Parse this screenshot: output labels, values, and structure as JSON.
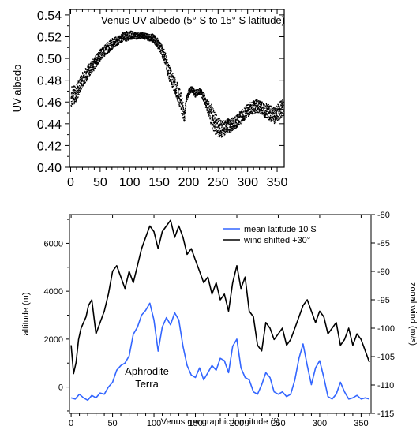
{
  "chart_data": [
    {
      "type": "scatter",
      "title": "Venus UV albedo (5° S to 15° S latitude)",
      "xlabel": "",
      "ylabel": "UV albedo",
      "xlim": [
        -2,
        362
      ],
      "ylim": [
        0.4,
        0.545
      ],
      "xticks": [
        0,
        50,
        100,
        150,
        200,
        250,
        300,
        350
      ],
      "yticks": [
        0.4,
        0.42,
        0.44,
        0.46,
        0.48,
        0.5,
        0.52,
        0.54
      ],
      "grid": false,
      "series": [
        {
          "color": "#000000",
          "envelope": {
            "x": [
              0,
              10,
              20,
              30,
              40,
              50,
              60,
              70,
              80,
              90,
              95,
              100,
              110,
              120,
              130,
              140,
              150,
              160,
              165,
              170,
              180,
              188,
              192,
              195,
              200,
              205,
              210,
              215,
              220,
              230,
              238,
              245,
              255,
              265,
              275,
              285,
              300,
              315,
              330,
              345,
              360
            ],
            "mid": [
              0.465,
              0.47,
              0.482,
              0.489,
              0.496,
              0.504,
              0.509,
              0.514,
              0.517,
              0.521,
              0.521,
              0.522,
              0.521,
              0.522,
              0.52,
              0.519,
              0.512,
              0.5,
              0.488,
              0.483,
              0.47,
              0.458,
              0.446,
              0.462,
              0.47,
              0.472,
              0.468,
              0.47,
              0.47,
              0.458,
              0.448,
              0.44,
              0.435,
              0.438,
              0.44,
              0.445,
              0.453,
              0.457,
              0.452,
              0.448,
              0.456
            ],
            "half": [
              0.01,
              0.008,
              0.007,
              0.006,
              0.006,
              0.005,
              0.005,
              0.005,
              0.004,
              0.004,
              0.005,
              0.004,
              0.003,
              0.003,
              0.003,
              0.004,
              0.005,
              0.006,
              0.007,
              0.007,
              0.008,
              0.01,
              0.006,
              0.003,
              0.003,
              0.003,
              0.004,
              0.003,
              0.003,
              0.006,
              0.01,
              0.01,
              0.008,
              0.007,
              0.006,
              0.006,
              0.006,
              0.006,
              0.007,
              0.008,
              0.008
            ]
          }
        }
      ]
    },
    {
      "type": "line",
      "title": "",
      "xlabel": "Venus geographic longitude (°)",
      "ylabel": "altitude (m)",
      "y2label": "zonal wind (m/s)",
      "xlim": [
        -2,
        362
      ],
      "ylim": [
        -1100,
        7200
      ],
      "y2lim": [
        -115,
        -80
      ],
      "xticks": [
        0,
        50,
        100,
        150,
        200,
        250,
        300,
        350
      ],
      "yticks": [
        0,
        2000,
        4000,
        6000
      ],
      "y2ticks": [
        -80,
        -85,
        -90,
        -95,
        -100,
        -105,
        -110,
        -115
      ],
      "legend_position": "top-right",
      "annotation": "Aphrodite Terra",
      "series": [
        {
          "name": "mean latitude 10 S",
          "color": "#3366ff",
          "axis": "left",
          "x": [
            0,
            5,
            10,
            15,
            20,
            25,
            30,
            35,
            40,
            45,
            50,
            55,
            60,
            65,
            70,
            75,
            80,
            85,
            90,
            95,
            100,
            105,
            110,
            115,
            120,
            125,
            130,
            135,
            140,
            145,
            150,
            155,
            160,
            165,
            170,
            175,
            180,
            185,
            190,
            195,
            200,
            205,
            210,
            215,
            220,
            225,
            230,
            235,
            240,
            245,
            250,
            255,
            260,
            265,
            270,
            275,
            280,
            285,
            290,
            295,
            300,
            305,
            310,
            315,
            320,
            325,
            330,
            335,
            340,
            345,
            350,
            355,
            360
          ],
          "y": [
            -450,
            -500,
            -300,
            -450,
            -550,
            -350,
            -450,
            -250,
            -300,
            0,
            200,
            700,
            900,
            1000,
            1300,
            2200,
            2500,
            3000,
            3200,
            3500,
            2800,
            1500,
            2500,
            2900,
            2600,
            3100,
            2800,
            1700,
            900,
            500,
            400,
            800,
            300,
            600,
            900,
            700,
            1200,
            1100,
            600,
            1700,
            2000,
            800,
            400,
            300,
            -200,
            -300,
            100,
            600,
            400,
            -200,
            -300,
            -200,
            -400,
            -300,
            300,
            1200,
            1800,
            900,
            100,
            800,
            1100,
            400,
            -400,
            -500,
            -300,
            200,
            -200,
            -500,
            -450,
            -350,
            -500,
            -450,
            -500
          ]
        },
        {
          "name": "wind shifted +30°",
          "color": "#000000",
          "axis": "right",
          "x": [
            0,
            3,
            6,
            9,
            12,
            15,
            18,
            21,
            25,
            30,
            35,
            40,
            45,
            50,
            55,
            60,
            65,
            70,
            75,
            80,
            85,
            90,
            95,
            100,
            105,
            110,
            115,
            120,
            125,
            130,
            135,
            140,
            145,
            150,
            155,
            160,
            165,
            170,
            175,
            180,
            185,
            190,
            195,
            200,
            205,
            210,
            215,
            220,
            225,
            230,
            235,
            240,
            245,
            250,
            255,
            260,
            265,
            270,
            275,
            280,
            285,
            290,
            295,
            300,
            305,
            310,
            315,
            320,
            325,
            330,
            335,
            340,
            345,
            350,
            355,
            360
          ],
          "y": [
            -103,
            -108,
            -106,
            -102,
            -100,
            -99,
            -98,
            -96,
            -95,
            -101,
            -99,
            -97,
            -94,
            -90,
            -89,
            -91,
            -93,
            -90,
            -92,
            -89,
            -86,
            -84,
            -82,
            -83,
            -86,
            -83,
            -82,
            -81,
            -84,
            -82,
            -84,
            -87,
            -86,
            -88,
            -90,
            -92,
            -91,
            -94,
            -92,
            -95,
            -94,
            -97,
            -92,
            -89,
            -93,
            -91,
            -97,
            -98,
            -103,
            -104,
            -99,
            -100,
            -102,
            -101,
            -100,
            -103,
            -102,
            -100,
            -98,
            -96,
            -95,
            -97,
            -99,
            -97,
            -98,
            -101,
            -100,
            -99,
            -103,
            -102,
            -100,
            -103,
            -101,
            -102,
            -104,
            -106
          ]
        }
      ]
    }
  ]
}
